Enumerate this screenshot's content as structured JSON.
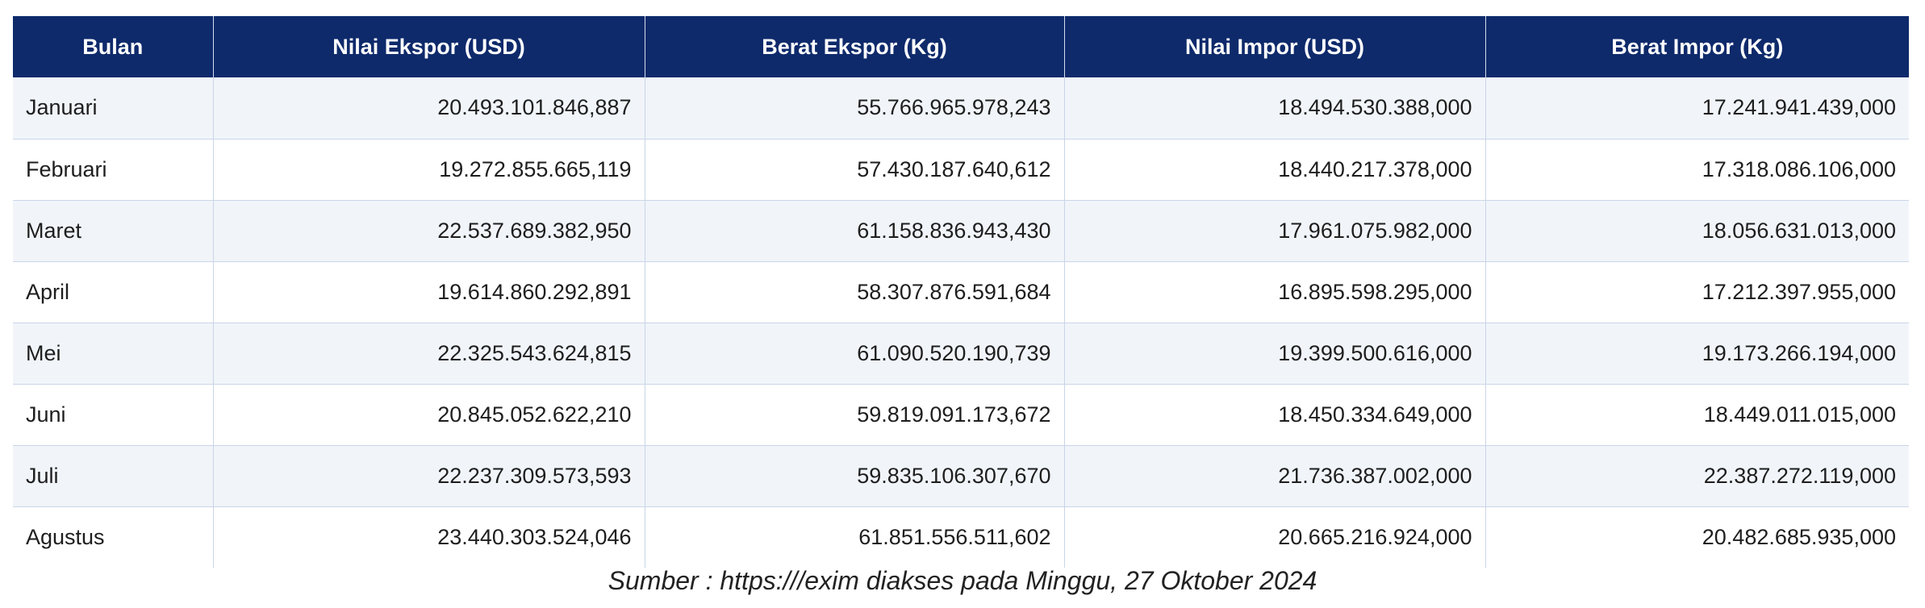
{
  "table": {
    "headers": [
      "Bulan",
      "Nilai Ekspor (USD)",
      "Berat Ekspor (Kg)",
      "Nilai Impor (USD)",
      "Berat Impor (Kg)"
    ],
    "rows": [
      [
        "Januari",
        "20.493.101.846,887",
        "55.766.965.978,243",
        "18.494.530.388,000",
        "17.241.941.439,000"
      ],
      [
        "Februari",
        "19.272.855.665,119",
        "57.430.187.640,612",
        "18.440.217.378,000",
        "17.318.086.106,000"
      ],
      [
        "Maret",
        "22.537.689.382,950",
        "61.158.836.943,430",
        "17.961.075.982,000",
        "18.056.631.013,000"
      ],
      [
        "April",
        "19.614.860.292,891",
        "58.307.876.591,684",
        "16.895.598.295,000",
        "17.212.397.955,000"
      ],
      [
        "Mei",
        "22.325.543.624,815",
        "61.090.520.190,739",
        "19.399.500.616,000",
        "19.173.266.194,000"
      ],
      [
        "Juni",
        "20.845.052.622,210",
        "59.819.091.173,672",
        "18.450.334.649,000",
        "18.449.011.015,000"
      ],
      [
        "Juli",
        "22.237.309.573,593",
        "59.835.106.307,670",
        "21.736.387.002,000",
        "22.387.272.119,000"
      ],
      [
        "Agustus",
        "23.440.303.524,046",
        "61.851.556.511,602",
        "20.665.216.924,000",
        "20.482.685.935,000"
      ]
    ]
  },
  "source_note": "Sumber : https:///exim diakses pada Minggu, 27 Oktober 2024",
  "colors": {
    "header_bg": "#0e2a6b",
    "header_text": "#ffffff",
    "row_alt_bg": "#f1f5fa",
    "border": "#c9d5e6"
  }
}
